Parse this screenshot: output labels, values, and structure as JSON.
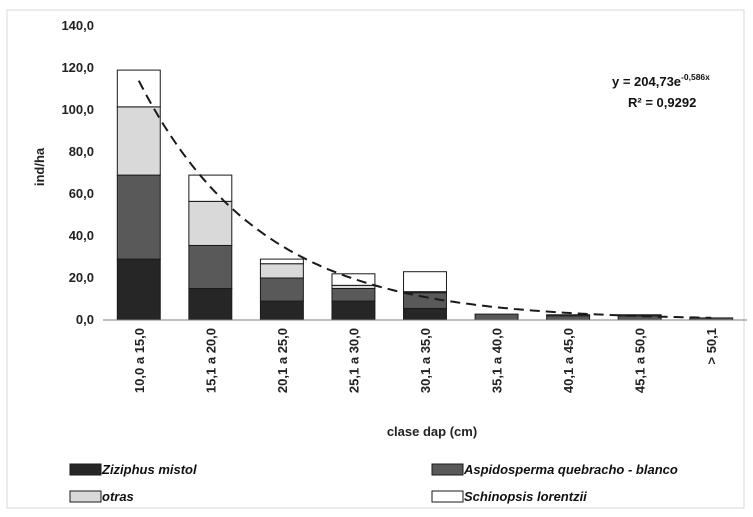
{
  "chart_data": {
    "type": "bar",
    "stacked": true,
    "categories": [
      "10,0 a 15,0",
      "15,1 a 20,0",
      "20,1 a 25,0",
      "25,1 a 30,0",
      "30,1 a 35,0",
      "35,1 a 40,0",
      "40,1 a 45,0",
      "45,1 a 50,0",
      "> 50,1"
    ],
    "series": [
      {
        "name": "Ziziphus mistol",
        "color": "#262626",
        "values": [
          29.0,
          15.0,
          9.0,
          9.0,
          5.5,
          0.0,
          0.0,
          0.0,
          0.0
        ]
      },
      {
        "name": "Aspidosperma quebracho - blanco",
        "color": "#595959",
        "values": [
          40.0,
          20.5,
          11.0,
          6.0,
          7.5,
          2.8,
          2.0,
          2.0,
          1.0
        ]
      },
      {
        "name": "otras",
        "color": "#d9d9d9",
        "values": [
          32.5,
          21.0,
          6.8,
          1.5,
          0.5,
          0.0,
          0.0,
          0.0,
          0.0
        ]
      },
      {
        "name": "Schinopsis lorentzii",
        "color": "#ffffff",
        "values": [
          17.5,
          12.5,
          2.2,
          5.5,
          9.5,
          0.0,
          0.5,
          0.5,
          0.0
        ]
      }
    ],
    "trendline": {
      "type": "exponential",
      "a": 204.73,
      "b": -0.586,
      "style": "dashed"
    },
    "equation": {
      "prefix": "y = 204,73e",
      "exponent": "-0,586x",
      "r2_label": "R² = 0,9292"
    },
    "xlabel": "clase dap (cm)",
    "ylabel": "ind/ha",
    "yticks": [
      "0,0",
      "20,0",
      "40,0",
      "60,0",
      "80,0",
      "100,0",
      "120,0",
      "140,0"
    ],
    "ylim": [
      0,
      140
    ],
    "grid": false,
    "legend_position": "bottom"
  }
}
